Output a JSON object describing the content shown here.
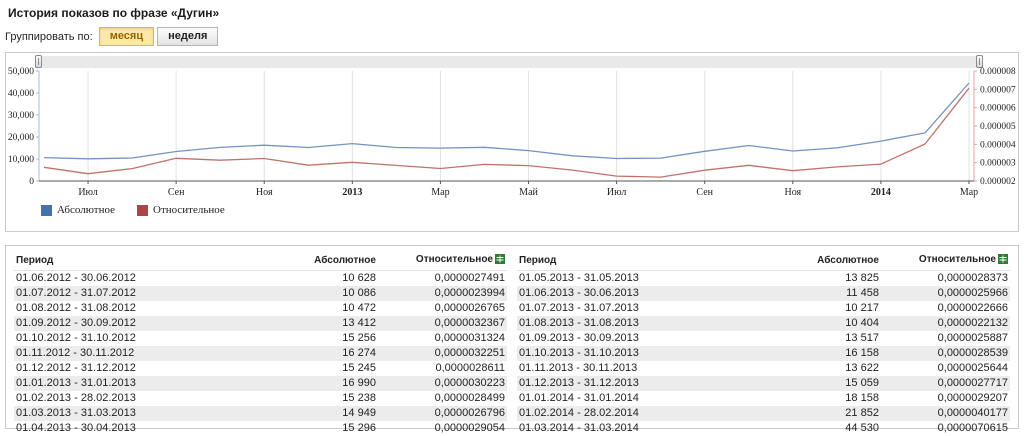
{
  "page": {
    "title": "История показов по фразе «Дугин»"
  },
  "groupby": {
    "label": "Группировать по:",
    "options": [
      {
        "label": "месяц",
        "selected": true
      },
      {
        "label": "неделя",
        "selected": false
      }
    ]
  },
  "chart_data": {
    "type": "line",
    "categories": [
      "06.2012",
      "07.2012",
      "08.2012",
      "09.2012",
      "10.2012",
      "11.2012",
      "12.2012",
      "01.2013",
      "02.2013",
      "03.2013",
      "04.2013",
      "05.2013",
      "06.2013",
      "07.2013",
      "08.2013",
      "09.2013",
      "10.2013",
      "11.2013",
      "12.2013",
      "01.2014",
      "02.2014",
      "03.2014"
    ],
    "x_tick_labels": [
      "Июл",
      "Сен",
      "Ноя",
      "2013",
      "Мар",
      "Май",
      "Июл",
      "Сен",
      "Ноя",
      "2014",
      "Мар"
    ],
    "left_axis_tick_labels": [
      "50,000",
      "40,000",
      "30,000",
      "20,000",
      "10,000",
      "0"
    ],
    "right_axis_tick_labels": [
      "0.000008",
      "0.000007",
      "0.000006",
      "0.000005",
      "0.000004",
      "0.000003",
      "0.000002"
    ],
    "ylim_left": [
      0,
      50000
    ],
    "ylim_right": [
      2e-06,
      8e-06
    ],
    "grid": true,
    "legend_position": "bottom-left",
    "series": [
      {
        "name": "Абсолютное",
        "color": "#4572a7",
        "line_color": "#7593c1",
        "values": [
          10628,
          10086,
          10472,
          13412,
          15256,
          16274,
          15245,
          16990,
          15238,
          14949,
          15296,
          13825,
          11458,
          10217,
          10404,
          13517,
          16158,
          13622,
          15059,
          18158,
          21852,
          44530
        ]
      },
      {
        "name": "Относительное",
        "color": "#aa4643",
        "line_color": "#c0736c",
        "values": [
          2.7491e-06,
          2.3994e-06,
          2.6765e-06,
          3.2367e-06,
          3.1324e-06,
          3.2251e-06,
          2.8611e-06,
          3.0223e-06,
          2.8499e-06,
          2.6796e-06,
          2.9054e-06,
          2.8373e-06,
          2.5966e-06,
          2.2666e-06,
          2.2132e-06,
          2.5887e-06,
          2.8539e-06,
          2.5644e-06,
          2.7717e-06,
          2.9207e-06,
          4.0177e-06,
          7.0615e-06
        ]
      }
    ]
  },
  "legend": {
    "items": [
      {
        "label": "Абсолютное",
        "color": "#4572a7"
      },
      {
        "label": "Относительное",
        "color": "#aa4643"
      }
    ]
  },
  "tables": {
    "headers": {
      "period": "Период",
      "absolute": "Абсолютное",
      "relative": "Относительное"
    },
    "relative_header_icon": "excel-export-icon",
    "icon_color": "#2e7d32",
    "left": {
      "rows": [
        [
          "01.06.2012 - 30.06.2012",
          "10 628",
          "0,0000027491"
        ],
        [
          "01.07.2012 - 31.07.2012",
          "10 086",
          "0,0000023994"
        ],
        [
          "01.08.2012 - 31.08.2012",
          "10 472",
          "0,0000026765"
        ],
        [
          "01.09.2012 - 30.09.2012",
          "13 412",
          "0,0000032367"
        ],
        [
          "01.10.2012 - 31.10.2012",
          "15 256",
          "0,0000031324"
        ],
        [
          "01.11.2012 - 30.11.2012",
          "16 274",
          "0,0000032251"
        ],
        [
          "01.12.2012 - 31.12.2012",
          "15 245",
          "0,0000028611"
        ],
        [
          "01.01.2013 - 31.01.2013",
          "16 990",
          "0,0000030223"
        ],
        [
          "01.02.2013 - 28.02.2013",
          "15 238",
          "0,0000028499"
        ],
        [
          "01.03.2013 - 31.03.2013",
          "14 949",
          "0,0000026796"
        ],
        [
          "01.04.2013 - 30.04.2013",
          "15 296",
          "0,0000029054"
        ]
      ]
    },
    "right": {
      "rows": [
        [
          "01.05.2013 - 31.05.2013",
          "13 825",
          "0,0000028373"
        ],
        [
          "01.06.2013 - 30.06.2013",
          "11 458",
          "0,0000025966"
        ],
        [
          "01.07.2013 - 31.07.2013",
          "10 217",
          "0,0000022666"
        ],
        [
          "01.08.2013 - 31.08.2013",
          "10 404",
          "0,0000022132"
        ],
        [
          "01.09.2013 - 30.09.2013",
          "13 517",
          "0,0000025887"
        ],
        [
          "01.10.2013 - 31.10.2013",
          "16 158",
          "0,0000028539"
        ],
        [
          "01.11.2013 - 30.11.2013",
          "13 622",
          "0,0000025644"
        ],
        [
          "01.12.2013 - 31.12.2013",
          "15 059",
          "0,0000027717"
        ],
        [
          "01.01.2014 - 31.01.2014",
          "18 158",
          "0,0000029207"
        ],
        [
          "01.02.2014 - 28.02.2014",
          "21 852",
          "0,0000040177"
        ],
        [
          "01.03.2014 - 31.03.2014",
          "44 530",
          "0,0000070615"
        ]
      ]
    }
  }
}
